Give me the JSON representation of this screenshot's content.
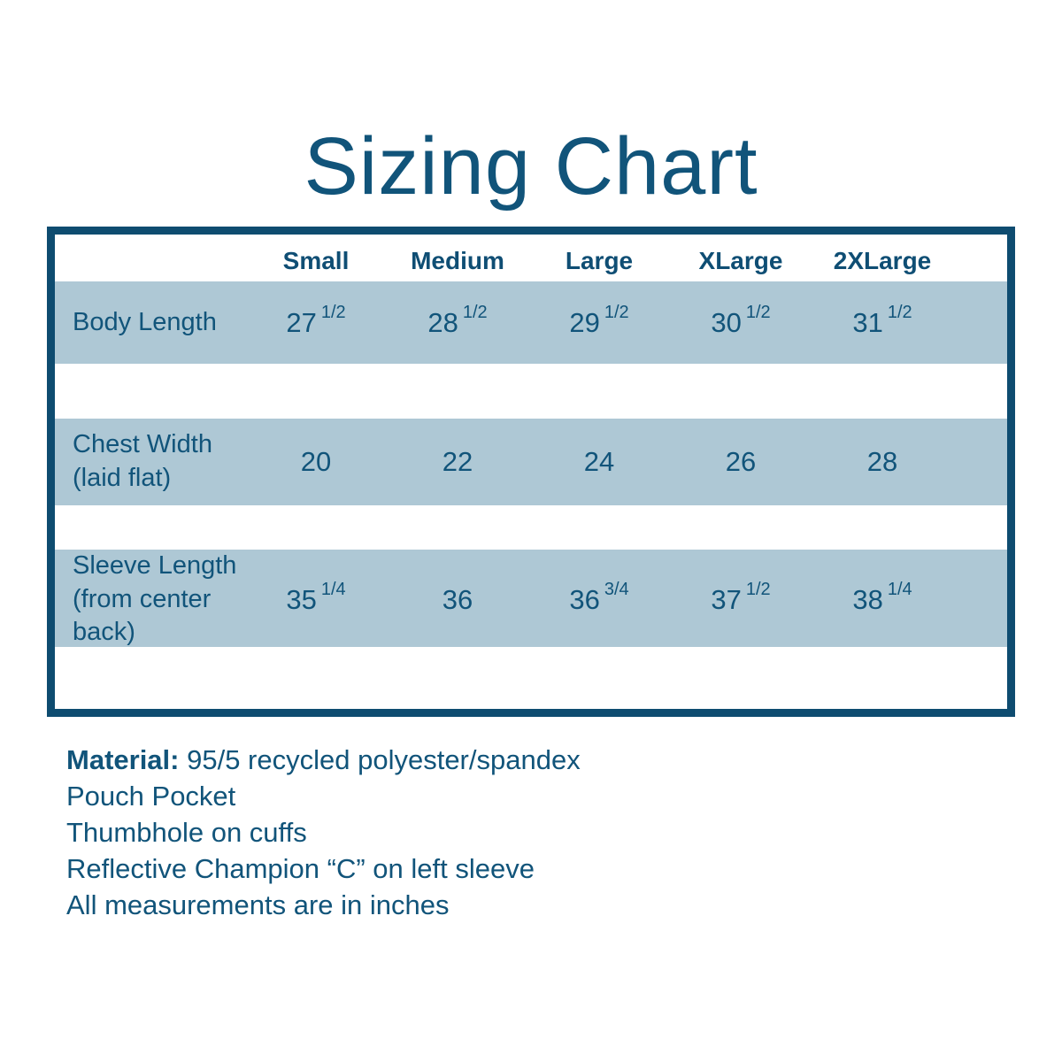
{
  "title": "Sizing Chart",
  "colors": {
    "ink_blue": "#11547a",
    "border_blue": "#0e4c70",
    "row_background": "#aec8d5",
    "page_background": "#ffffff"
  },
  "table": {
    "sizes": [
      "Small",
      "Medium",
      "Large",
      "XLarge",
      "2XLarge"
    ],
    "rows": [
      {
        "label": "Body Length",
        "cells": [
          {
            "main": "27",
            "sup": "1/2"
          },
          {
            "main": "28",
            "sup": "1/2"
          },
          {
            "main": "29",
            "sup": "1/2"
          },
          {
            "main": "30",
            "sup": "1/2"
          },
          {
            "main": "31",
            "sup": "1/2"
          }
        ]
      },
      {
        "label": "Chest Width (laid flat)",
        "cells": [
          {
            "main": "20",
            "sup": ""
          },
          {
            "main": "22",
            "sup": ""
          },
          {
            "main": "24",
            "sup": ""
          },
          {
            "main": "26",
            "sup": ""
          },
          {
            "main": "28",
            "sup": ""
          }
        ]
      },
      {
        "label": "Sleeve Length (from center back)",
        "cells": [
          {
            "main": "35",
            "sup": "1/4"
          },
          {
            "main": "36",
            "sup": ""
          },
          {
            "main": "36",
            "sup": "3/4"
          },
          {
            "main": "37",
            "sup": "1/2"
          },
          {
            "main": "38",
            "sup": "1/4"
          }
        ]
      }
    ]
  },
  "notes": {
    "material_label": "Material:",
    "material_value": " 95/5 recycled polyester/spandex",
    "lines": [
      "Pouch Pocket",
      "Thumbhole on cuffs",
      "Reflective Champion “C” on left sleeve",
      "All measurements are in inches"
    ]
  },
  "chart_data": {
    "type": "table",
    "title": "Sizing Chart",
    "units": "inches",
    "columns": [
      "",
      "Small",
      "Medium",
      "Large",
      "XLarge",
      "2XLarge"
    ],
    "rows": [
      {
        "label": "Body Length",
        "values": [
          27.5,
          28.5,
          29.5,
          30.5,
          31.5
        ],
        "display": [
          "27 1/2",
          "28 1/2",
          "29 1/2",
          "30 1/2",
          "31 1/2"
        ]
      },
      {
        "label": "Chest Width (laid flat)",
        "values": [
          20,
          22,
          24,
          26,
          28
        ],
        "display": [
          "20",
          "22",
          "24",
          "26",
          "28"
        ]
      },
      {
        "label": "Sleeve Length (from center back)",
        "values": [
          35.25,
          36,
          36.75,
          37.5,
          38.25
        ],
        "display": [
          "35 1/4",
          "36",
          "36 3/4",
          "37 1/2",
          "38 1/4"
        ]
      }
    ]
  }
}
